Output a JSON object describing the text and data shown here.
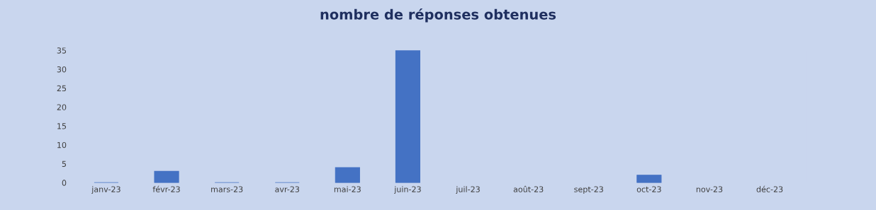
{
  "chart_data": {
    "type": "bar",
    "title": "nombre de réponses obtenues",
    "categories": [
      "janv-23",
      "févr-23",
      "mars-23",
      "avr-23",
      "mai-23",
      "juin-23",
      "juil-23",
      "août-23",
      "sept-23",
      "oct-23",
      "nov-23",
      "déc-23"
    ],
    "values": [
      0,
      3,
      0,
      0,
      4,
      35,
      null,
      null,
      null,
      2,
      null,
      null
    ],
    "color": "#4472c4",
    "ylim": [
      0,
      35
    ],
    "yticks": [
      0,
      5,
      10,
      15,
      20,
      25,
      30,
      35
    ],
    "grid": false
  }
}
